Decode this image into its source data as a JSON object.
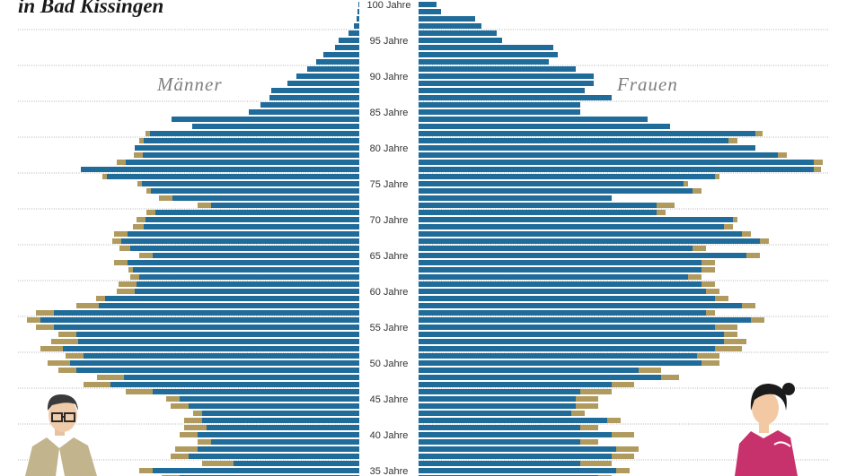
{
  "title": "in Bad Kissingen",
  "chart_data": {
    "type": "bar",
    "title": "in Bad Kissingen",
    "orientation": "horizontal population pyramid",
    "age_range": [
      34,
      100
    ],
    "tick_labels": [
      "100 Jahre",
      "95 Jahre",
      "90 Jahre",
      "85 Jahre",
      "80 Jahre",
      "75 Jahre",
      "70 Jahre",
      "65 Jahre",
      "60 Jahre",
      "55 Jahre",
      "50 Jahre",
      "45 Jahre",
      "40 Jahre",
      "35 Jahre"
    ],
    "tick_ages": [
      100,
      95,
      90,
      85,
      80,
      75,
      70,
      65,
      60,
      55,
      50,
      45,
      40,
      35
    ],
    "series": [
      {
        "name": "Männer",
        "side": "left",
        "color": "#1f6b9a",
        "extra_color": "#b19a5e",
        "ages": [
          100,
          99,
          98,
          97,
          96,
          95,
          94,
          93,
          92,
          91,
          90,
          89,
          88,
          87,
          86,
          85,
          84,
          83,
          82,
          81,
          80,
          79,
          78,
          77,
          76,
          75,
          74,
          73,
          72,
          71,
          70,
          69,
          68,
          67,
          66,
          65,
          64,
          63,
          62,
          61,
          60,
          59,
          58,
          57,
          56,
          55,
          54,
          53,
          52,
          51,
          50,
          49,
          48,
          47,
          46,
          45,
          44,
          43,
          42,
          41,
          40,
          39,
          38,
          37,
          36,
          35,
          34
        ],
        "base": [
          1,
          2,
          3,
          6,
          12,
          23,
          27,
          40,
          48,
          58,
          70,
          80,
          98,
          100,
          110,
          123,
          209,
          186,
          233,
          240,
          250,
          241,
          260,
          310,
          281,
          242,
          232,
          208,
          165,
          227,
          238,
          240,
          258,
          265,
          255,
          230,
          258,
          252,
          245,
          248,
          250,
          283,
          290,
          340,
          355,
          340,
          315,
          313,
          330,
          307,
          322,
          315,
          262,
          277,
          230,
          200,
          190,
          175,
          175,
          170,
          180,
          165,
          180,
          190,
          140,
          230,
          200
        ],
        "extra": [
          0,
          0,
          0,
          0,
          0,
          0,
          0,
          0,
          0,
          0,
          0,
          0,
          0,
          0,
          0,
          0,
          0,
          0,
          5,
          5,
          0,
          10,
          10,
          0,
          5,
          5,
          5,
          15,
          15,
          10,
          10,
          12,
          15,
          10,
          12,
          15,
          15,
          5,
          10,
          20,
          20,
          10,
          25,
          20,
          15,
          20,
          20,
          30,
          25,
          20,
          25,
          20,
          30,
          30,
          30,
          15,
          20,
          10,
          20,
          25,
          20,
          15,
          25,
          20,
          35,
          15,
          20
        ]
      },
      {
        "name": "Frauen",
        "side": "right",
        "color": "#1f6b9a",
        "extra_color": "#b19a5e",
        "ages": [
          100,
          99,
          98,
          97,
          96,
          95,
          94,
          93,
          92,
          91,
          90,
          89,
          88,
          87,
          86,
          85,
          84,
          83,
          82,
          81,
          80,
          79,
          78,
          77,
          76,
          75,
          74,
          73,
          72,
          71,
          70,
          69,
          68,
          67,
          66,
          65,
          64,
          63,
          62,
          61,
          60,
          59,
          58,
          57,
          56,
          55,
          54,
          53,
          52,
          51,
          50,
          49,
          48,
          47,
          46,
          45,
          44,
          43,
          42,
          41,
          40,
          39,
          38,
          37,
          36,
          35,
          34
        ],
        "base": [
          20,
          25,
          63,
          70,
          87,
          93,
          150,
          155,
          145,
          175,
          195,
          195,
          185,
          215,
          180,
          180,
          255,
          280,
          375,
          345,
          375,
          400,
          440,
          440,
          330,
          295,
          305,
          215,
          265,
          265,
          350,
          340,
          360,
          380,
          305,
          365,
          315,
          315,
          300,
          315,
          320,
          330,
          360,
          320,
          370,
          330,
          340,
          340,
          330,
          310,
          315,
          245,
          270,
          215,
          180,
          175,
          175,
          170,
          210,
          180,
          215,
          180,
          220,
          215,
          180,
          220,
          200
        ]
      }
    ],
    "extra_right": [
      0,
      0,
      0,
      0,
      0,
      0,
      0,
      0,
      0,
      0,
      0,
      0,
      0,
      0,
      0,
      0,
      0,
      0,
      8,
      10,
      0,
      10,
      10,
      8,
      5,
      5,
      10,
      0,
      20,
      10,
      5,
      10,
      10,
      10,
      15,
      15,
      15,
      15,
      15,
      15,
      15,
      15,
      15,
      10,
      15,
      25,
      15,
      25,
      30,
      25,
      20,
      25,
      20,
      25,
      35,
      25,
      25,
      15,
      15,
      20,
      25,
      20,
      25,
      25,
      35,
      15,
      15
    ]
  },
  "side_labels": {
    "left": "Männer",
    "right": "Frauen"
  },
  "icons": {
    "left": "man-with-glasses-icon",
    "right": "woman-icon"
  }
}
